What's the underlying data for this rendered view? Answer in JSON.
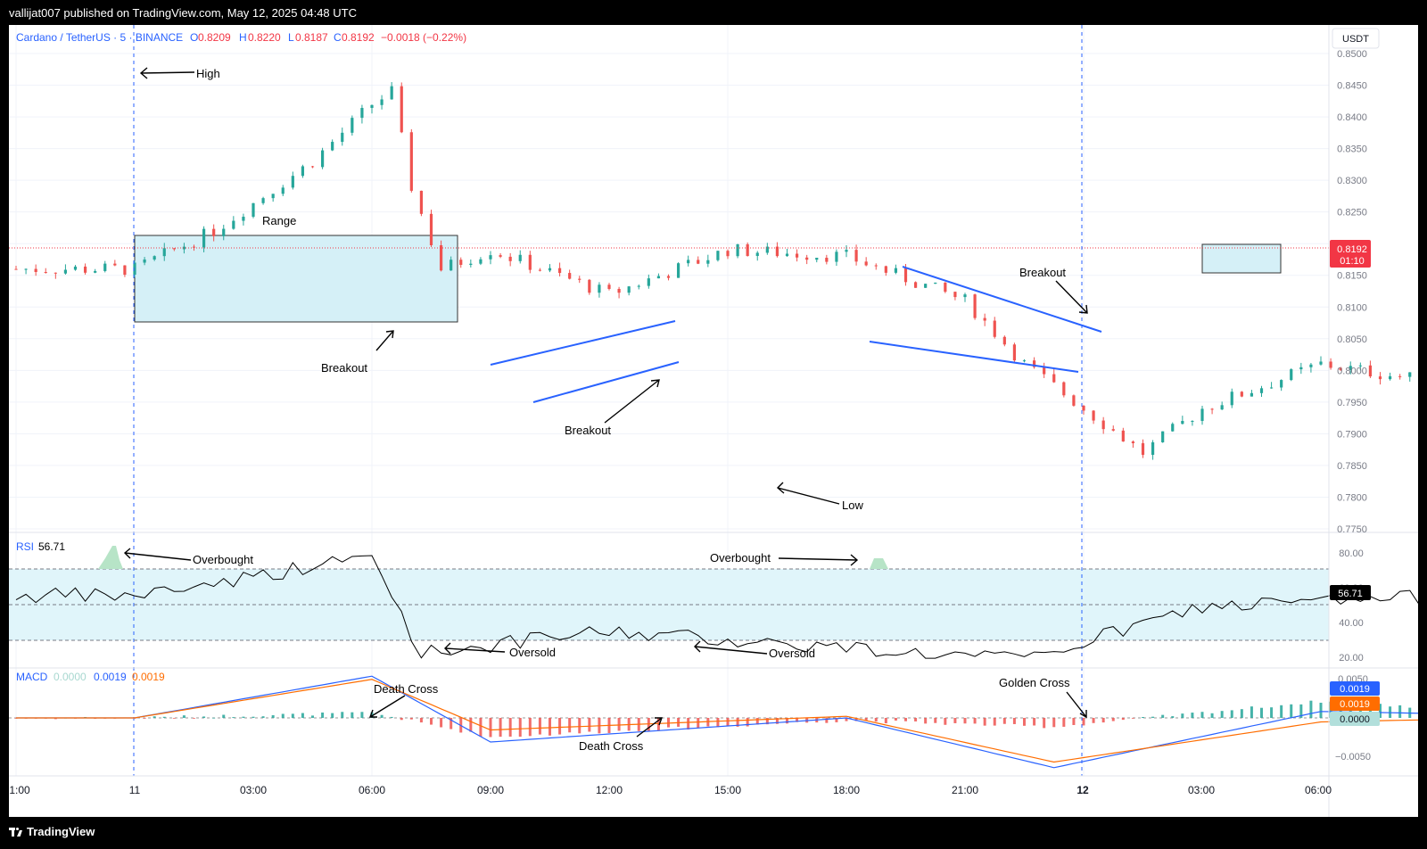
{
  "header": {
    "published": "vallijat007 published on TradingView.com, May 12, 2025 04:48 UTC"
  },
  "footer": {
    "brand": "TradingView"
  },
  "colors": {
    "up": "#26a69a",
    "down": "#ef5350",
    "trend": "#2962ff",
    "rsi_band": "#e0f5fa",
    "price_badge": "#f23645",
    "macd_line": "#2962ff",
    "signal_line": "#ff6d00"
  },
  "icons": {
    "logo": "tradingview-logo-icon"
  },
  "legend": {
    "symbol": "Cardano / TetherUS · 5 · BINANCE",
    "o_label": "O",
    "o": "0.8209",
    "h_label": "H",
    "h": "0.8220",
    "l_label": "L",
    "l": "0.8187",
    "c_label": "C",
    "c": "0.8192",
    "change": "−0.0018 (−0.22%)"
  },
  "price_axis": {
    "currency": "USDT",
    "last_price": "0.8192",
    "countdown": "01:10"
  },
  "rsi_panel": {
    "label": "RSI",
    "value": "56.71",
    "ticks": [
      "80.00",
      "60.00",
      "40.00",
      "20.00"
    ]
  },
  "macd_panel": {
    "label": "MACD",
    "hist": "0.0000",
    "macd": "0.0019",
    "signal": "0.0019",
    "badge_macd": "0.0019",
    "badge_signal": "0.0019",
    "badge_hist": "0.0000",
    "ticks": [
      "0.0050",
      "0.0000",
      "−0.0050"
    ]
  },
  "time_axis": [
    "1:00",
    "11",
    "03:00",
    "06:00",
    "09:00",
    "12:00",
    "15:00",
    "18:00",
    "21:00",
    "12",
    "03:00",
    "06:00"
  ],
  "annotations": {
    "high": "High",
    "range": "Range",
    "breakout_1": "Breakout",
    "breakout_2": "Breakout",
    "breakout_3": "Breakout",
    "low": "Low",
    "overbought_1": "Overbought",
    "overbought_2": "Overbought",
    "oversold_1": "Oversold",
    "oversold_2": "Oversold",
    "death_cross_1": "Death Cross",
    "death_cross_2": "Death Cross",
    "golden_cross": "Golden Cross"
  },
  "chart_data": {
    "type": "candlestick",
    "symbol": "Cardano / TetherUS",
    "interval": "5",
    "exchange": "BINANCE",
    "yunit": "USDT",
    "ylim": [
      0.775,
      0.85
    ],
    "yticks": [
      0.775,
      0.78,
      0.785,
      0.79,
      0.795,
      0.8,
      0.805,
      0.81,
      0.815,
      0.82,
      0.825,
      0.83,
      0.835,
      0.84,
      0.845,
      0.85
    ],
    "ytick_labels": [
      "0.7750",
      "0.7800",
      "0.7850",
      "0.7900",
      "0.7950",
      "0.8000",
      "0.8050",
      "0.8100",
      "0.8150",
      "0.8200",
      "0.8250",
      "0.8300",
      "0.8350",
      "0.8400",
      "0.8450",
      "0.8500"
    ],
    "price_anchors": [
      {
        "time": "11 00:00",
        "close": 0.816
      },
      {
        "time": "11 00:40",
        "close": 0.822
      },
      {
        "time": "11 01:30",
        "close": 0.833
      },
      {
        "time": "11 02:00",
        "close": 0.842
      },
      {
        "time": "11 02:10",
        "close": 0.844
      },
      {
        "time": "11 02:20",
        "close": 0.829
      },
      {
        "time": "11 02:35",
        "close": 0.816
      },
      {
        "time": "11 03:00",
        "close": 0.819
      },
      {
        "time": "11 04:00",
        "close": 0.812
      },
      {
        "time": "11 05:00",
        "close": 0.819
      },
      {
        "time": "11 06:00",
        "close": 0.818
      },
      {
        "time": "11 07:00",
        "close": 0.811
      },
      {
        "time": "11 07:30",
        "close": 0.801
      },
      {
        "time": "11 08:30",
        "close": 0.787
      },
      {
        "time": "11 09:00",
        "close": 0.794
      },
      {
        "time": "11 10:00",
        "close": 0.801
      },
      {
        "time": "11 11:00",
        "close": 0.798
      },
      {
        "time": "11 12:00",
        "close": 0.804
      },
      {
        "time": "11 13:00",
        "close": 0.803
      },
      {
        "time": "11 14:00",
        "close": 0.794
      },
      {
        "time": "11 15:00",
        "close": 0.798
      },
      {
        "time": "11 16:00",
        "close": 0.784
      },
      {
        "time": "11 17:00",
        "close": 0.793
      },
      {
        "time": "11 18:00",
        "close": 0.801
      },
      {
        "time": "11 18:40",
        "close": 0.815
      },
      {
        "time": "11 20:00",
        "close": 0.808
      },
      {
        "time": "11 21:00",
        "close": 0.803
      },
      {
        "time": "11 22:00",
        "close": 0.809
      },
      {
        "time": "11 23:00",
        "close": 0.804
      },
      {
        "time": "12 00:00",
        "close": 0.808
      },
      {
        "time": "12 01:00",
        "close": 0.82
      },
      {
        "time": "12 02:00",
        "close": 0.801
      },
      {
        "time": "12 03:00",
        "close": 0.812
      },
      {
        "time": "12 04:00",
        "close": 0.818
      },
      {
        "time": "12 04:45",
        "close": 0.8192
      }
    ],
    "last": {
      "open": 0.8209,
      "high": 0.822,
      "low": 0.8187,
      "close": 0.8192,
      "change": -0.0018,
      "change_pct": -0.22
    },
    "marked_levels": {
      "high": 0.845,
      "low": 0.7815,
      "range_top": 0.822,
      "range_bottom": 0.8085
    }
  },
  "rsi_data": {
    "length_hint": "RSI",
    "last": 56.71,
    "upper_band": 70,
    "lower_band": 30,
    "mid": 50,
    "anchors": [
      {
        "time": "11 00:00",
        "value": 60
      },
      {
        "time": "11 02:00",
        "value": 82
      },
      {
        "time": "11 02:25",
        "value": 28
      },
      {
        "time": "11 04:00",
        "value": 40
      },
      {
        "time": "11 07:30",
        "value": 24
      },
      {
        "time": "11 09:00",
        "value": 54
      },
      {
        "time": "11 12:00",
        "value": 62
      },
      {
        "time": "11 14:00",
        "value": 24
      },
      {
        "time": "11 16:00",
        "value": 32
      },
      {
        "time": "11 18:40",
        "value": 75
      },
      {
        "time": "11 21:00",
        "value": 34
      },
      {
        "time": "12 00:00",
        "value": 42
      },
      {
        "time": "12 01:00",
        "value": 70
      },
      {
        "time": "12 01:30",
        "value": 31
      },
      {
        "time": "12 04:45",
        "value": 56.71
      }
    ]
  },
  "macd_data": {
    "last_macd": 0.0019,
    "last_signal": 0.0019,
    "last_hist": 0.0,
    "anchors": [
      {
        "time": "11 00:00",
        "macd": 0.0,
        "signal": 0.0
      },
      {
        "time": "11 02:00",
        "macd": 0.0052,
        "signal": 0.0048
      },
      {
        "time": "11 03:00",
        "macd": -0.003,
        "signal": -0.0015
      },
      {
        "time": "11 06:00",
        "macd": 0.0,
        "signal": 0.0002
      },
      {
        "time": "11 07:45",
        "macd": -0.0062,
        "signal": -0.0055
      },
      {
        "time": "11 10:00",
        "macd": 0.0008,
        "signal": -0.0005
      },
      {
        "time": "11 13:00",
        "macd": 0.0,
        "signal": 0.0004
      },
      {
        "time": "11 15:00",
        "macd": -0.002,
        "signal": -0.0012
      },
      {
        "time": "11 19:00",
        "macd": 0.0052,
        "signal": 0.0045
      },
      {
        "time": "11 23:00",
        "macd": -0.001,
        "signal": -0.0006
      },
      {
        "time": "12 01:00",
        "macd": 0.0032,
        "signal": 0.0022
      },
      {
        "time": "12 02:00",
        "macd": -0.0015,
        "signal": -0.0005
      },
      {
        "time": "12 04:45",
        "macd": 0.0019,
        "signal": 0.0019
      }
    ]
  }
}
